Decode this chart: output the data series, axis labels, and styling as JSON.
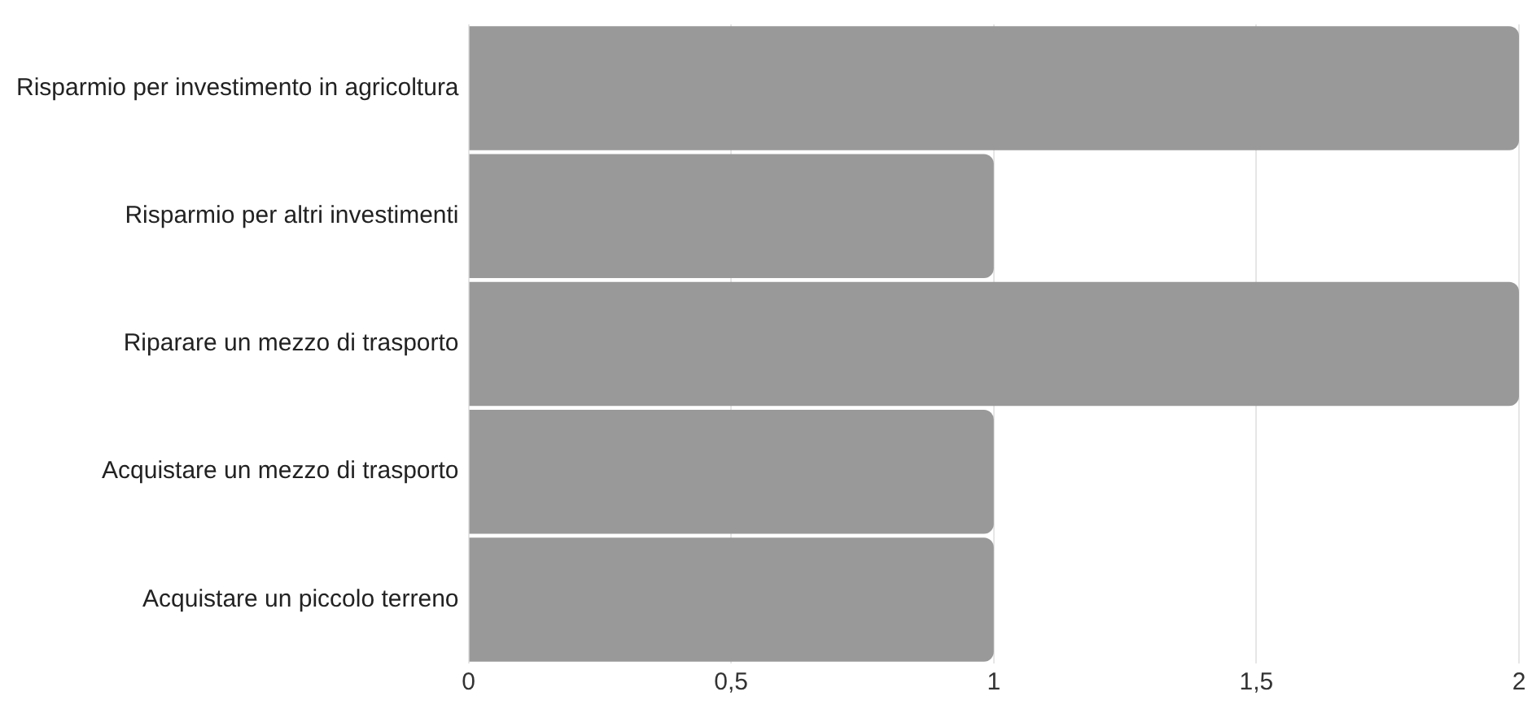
{
  "chart_data": {
    "type": "bar",
    "orientation": "horizontal",
    "categories": [
      "Risparmio per investimento in agricoltura",
      "Risparmio per altri investimenti",
      "Riparare un mezzo di trasporto",
      "Acquistare un mezzo di trasporto",
      "Acquistare un piccolo terreno"
    ],
    "values": [
      2,
      1,
      2,
      1,
      1
    ],
    "color": "#999999",
    "xlim": [
      0,
      2
    ],
    "xticks": [
      0,
      {
        "value": 0.5,
        "label": "0,5"
      },
      1,
      {
        "value": 1.5,
        "label": "1,5"
      },
      2
    ],
    "grid": "x",
    "legend": false
  }
}
